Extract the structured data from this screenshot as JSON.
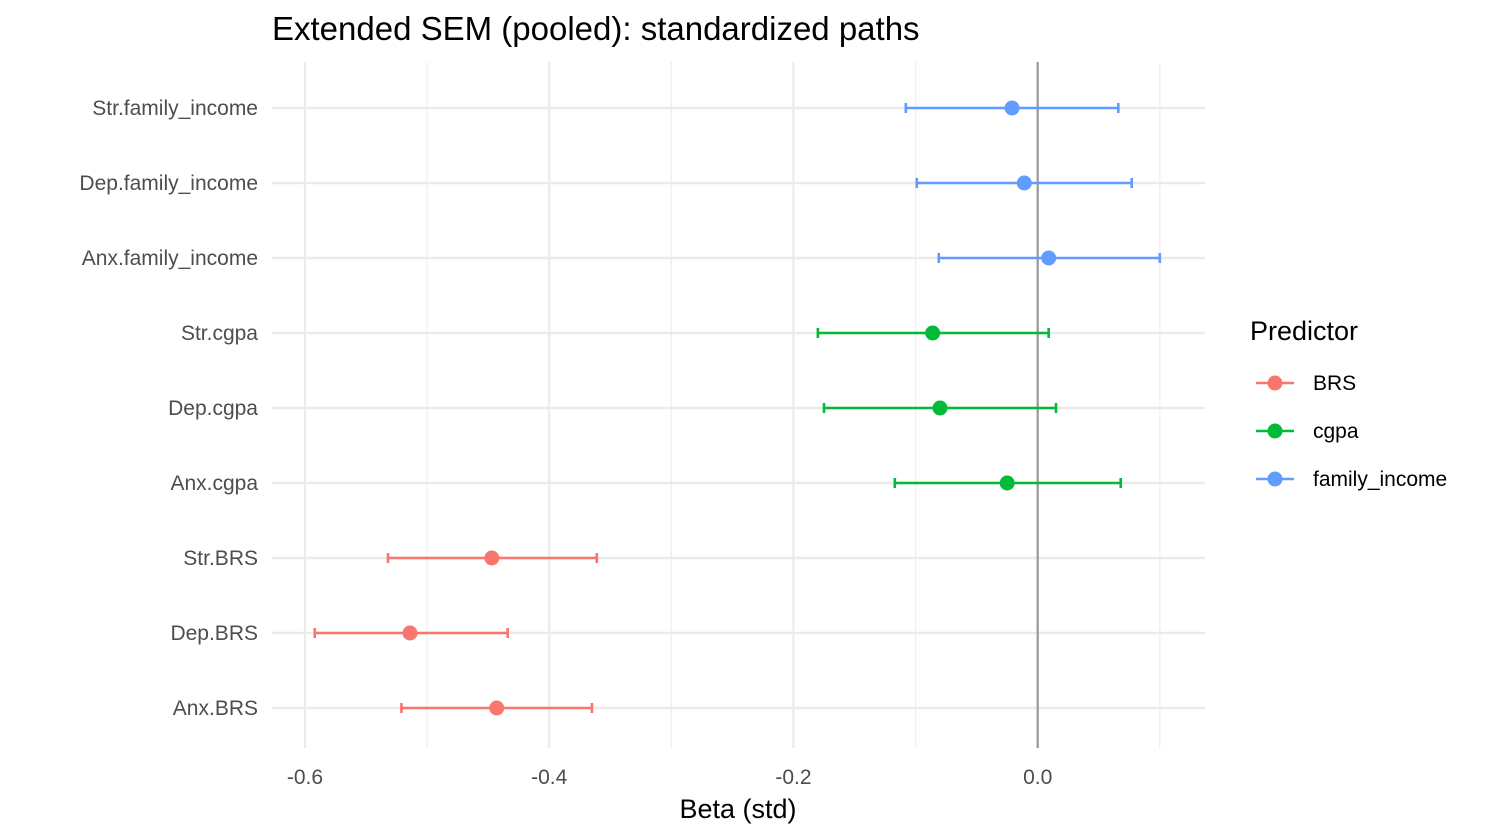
{
  "chart_data": {
    "type": "scatter",
    "subtype": "forest-plot",
    "title": "Extended SEM (pooled): standardized paths",
    "xlabel": "Beta (std)",
    "ylabel": "",
    "xlim": [
      -0.627,
      0.137
    ],
    "x_ticks": [
      -0.6,
      -0.4,
      -0.2,
      0.0
    ],
    "x_tick_labels": [
      "-0.6",
      "-0.4",
      "-0.2",
      "0.0"
    ],
    "reference_line_x": 0.0,
    "grid": true,
    "legend": {
      "title": "Predictor",
      "position": "right"
    },
    "categories": [
      "Anx.BRS",
      "Dep.BRS",
      "Str.BRS",
      "Anx.cgpa",
      "Dep.cgpa",
      "Str.cgpa",
      "Anx.family_income",
      "Dep.family_income",
      "Str.family_income"
    ],
    "series": [
      {
        "name": "BRS",
        "color": "#F8766D",
        "points": [
          {
            "label": "Anx.BRS",
            "estimate": -0.443,
            "lower": -0.521,
            "upper": -0.365
          },
          {
            "label": "Dep.BRS",
            "estimate": -0.514,
            "lower": -0.592,
            "upper": -0.434
          },
          {
            "label": "Str.BRS",
            "estimate": -0.447,
            "lower": -0.532,
            "upper": -0.361
          }
        ]
      },
      {
        "name": "cgpa",
        "color": "#00BA38",
        "points": [
          {
            "label": "Anx.cgpa",
            "estimate": -0.025,
            "lower": -0.117,
            "upper": 0.068
          },
          {
            "label": "Dep.cgpa",
            "estimate": -0.08,
            "lower": -0.175,
            "upper": 0.015
          },
          {
            "label": "Str.cgpa",
            "estimate": -0.086,
            "lower": -0.18,
            "upper": 0.009
          }
        ]
      },
      {
        "name": "family_income",
        "color": "#619CFF",
        "points": [
          {
            "label": "Anx.family_income",
            "estimate": 0.009,
            "lower": -0.081,
            "upper": 0.1
          },
          {
            "label": "Dep.family_income",
            "estimate": -0.011,
            "lower": -0.099,
            "upper": 0.077
          },
          {
            "label": "Str.family_income",
            "estimate": -0.021,
            "lower": -0.108,
            "upper": 0.066
          }
        ]
      }
    ]
  }
}
